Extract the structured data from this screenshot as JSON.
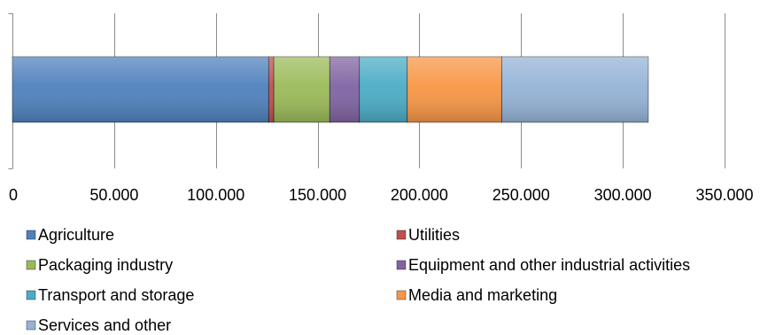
{
  "chart_data": {
    "type": "bar",
    "orientation": "horizontal",
    "stacked": true,
    "title": "",
    "xlabel": "",
    "ylabel": "",
    "xlim": [
      0,
      350000
    ],
    "ticks": [
      0,
      50000,
      100000,
      150000,
      200000,
      250000,
      300000,
      350000
    ],
    "tick_labels": [
      "0",
      "50.000",
      "100.000",
      "150.000",
      "200.000",
      "250.000",
      "300.000",
      "350.000"
    ],
    "grid": "vertical",
    "legend_position": "bottom",
    "categories": [
      ""
    ],
    "series": [
      {
        "name": "Agriculture",
        "values": [
          126000
        ],
        "color": "#4F81BD"
      },
      {
        "name": "Utilities",
        "values": [
          2500
        ],
        "color": "#C0504D"
      },
      {
        "name": "Packaging industry",
        "values": [
          27500
        ],
        "color": "#9BBB59"
      },
      {
        "name": "Equipment and other industrial activities",
        "values": [
          14500
        ],
        "color": "#8064A2"
      },
      {
        "name": "Transport and storage",
        "values": [
          23500
        ],
        "color": "#4BACC6"
      },
      {
        "name": "Media and marketing",
        "values": [
          46500
        ],
        "color": "#F79646"
      },
      {
        "name": "Services and other",
        "values": [
          72000
        ],
        "color": "#95B3D7"
      }
    ]
  }
}
